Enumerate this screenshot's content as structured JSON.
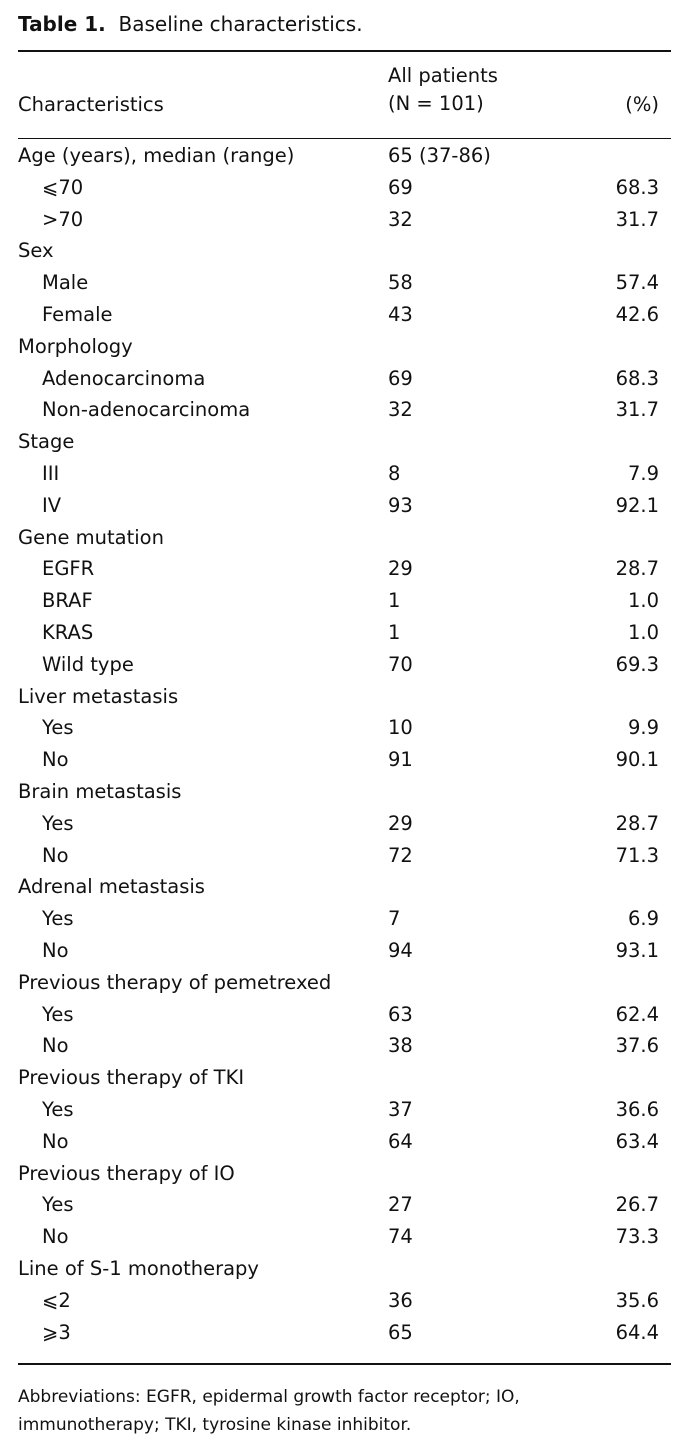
{
  "caption": {
    "label": "Table 1.",
    "title": "Baseline characteristics."
  },
  "header": {
    "col1": "Characteristics",
    "col2_line1": "All patients",
    "col2_line2": "(N = 101)",
    "col3": "(%)"
  },
  "rows": [
    {
      "label": "Age (years), median (range)",
      "n": "65 (37-86)",
      "pct": "",
      "indent": false
    },
    {
      "label": "⩽70",
      "n": "69",
      "pct": "68.3",
      "indent": true
    },
    {
      "label": ">70",
      "n": "32",
      "pct": "31.7",
      "indent": true
    },
    {
      "label": "Sex",
      "n": "",
      "pct": "",
      "indent": false
    },
    {
      "label": "Male",
      "n": "58",
      "pct": "57.4",
      "indent": true
    },
    {
      "label": "Female",
      "n": "43",
      "pct": "42.6",
      "indent": true
    },
    {
      "label": "Morphology",
      "n": "",
      "pct": "",
      "indent": false
    },
    {
      "label": "Adenocarcinoma",
      "n": "69",
      "pct": "68.3",
      "indent": true
    },
    {
      "label": "Non-adenocarcinoma",
      "n": "32",
      "pct": "31.7",
      "indent": true
    },
    {
      "label": "Stage",
      "n": "",
      "pct": "",
      "indent": false
    },
    {
      "label": "III",
      "n": "8",
      "pct": "7.9",
      "indent": true
    },
    {
      "label": "IV",
      "n": "93",
      "pct": "92.1",
      "indent": true
    },
    {
      "label": "Gene mutation",
      "n": "",
      "pct": "",
      "indent": false
    },
    {
      "label": "EGFR",
      "n": "29",
      "pct": "28.7",
      "indent": true
    },
    {
      "label": "BRAF",
      "n": "1",
      "pct": "1.0",
      "indent": true
    },
    {
      "label": "KRAS",
      "n": "1",
      "pct": "1.0",
      "indent": true
    },
    {
      "label": "Wild type",
      "n": "70",
      "pct": "69.3",
      "indent": true
    },
    {
      "label": "Liver metastasis",
      "n": "",
      "pct": "",
      "indent": false
    },
    {
      "label": "Yes",
      "n": "10",
      "pct": "9.9",
      "indent": true
    },
    {
      "label": "No",
      "n": "91",
      "pct": "90.1",
      "indent": true
    },
    {
      "label": "Brain metastasis",
      "n": "",
      "pct": "",
      "indent": false
    },
    {
      "label": "Yes",
      "n": "29",
      "pct": "28.7",
      "indent": true
    },
    {
      "label": "No",
      "n": "72",
      "pct": "71.3",
      "indent": true
    },
    {
      "label": "Adrenal metastasis",
      "n": "",
      "pct": "",
      "indent": false
    },
    {
      "label": "Yes",
      "n": "7",
      "pct": "6.9",
      "indent": true
    },
    {
      "label": "No",
      "n": "94",
      "pct": "93.1",
      "indent": true
    },
    {
      "label": "Previous therapy of pemetrexed",
      "n": "",
      "pct": "",
      "indent": false
    },
    {
      "label": "Yes",
      "n": "63",
      "pct": "62.4",
      "indent": true
    },
    {
      "label": "No",
      "n": "38",
      "pct": "37.6",
      "indent": true
    },
    {
      "label": "Previous therapy of TKI",
      "n": "",
      "pct": "",
      "indent": false
    },
    {
      "label": "Yes",
      "n": "37",
      "pct": "36.6",
      "indent": true
    },
    {
      "label": "No",
      "n": "64",
      "pct": "63.4",
      "indent": true
    },
    {
      "label": "Previous therapy of IO",
      "n": "",
      "pct": "",
      "indent": false
    },
    {
      "label": "Yes",
      "n": "27",
      "pct": "26.7",
      "indent": true
    },
    {
      "label": "No",
      "n": "74",
      "pct": "73.3",
      "indent": true
    },
    {
      "label": "Line of S-1 monotherapy",
      "n": "",
      "pct": "",
      "indent": false
    },
    {
      "label": "⩽2",
      "n": "36",
      "pct": "35.6",
      "indent": true
    },
    {
      "label": "⩾3",
      "n": "65",
      "pct": "64.4",
      "indent": true
    }
  ],
  "footnote": "Abbreviations: EGFR, epidermal growth factor receptor; IO, immunotherapy; TKI, tyrosine kinase inhibitor."
}
